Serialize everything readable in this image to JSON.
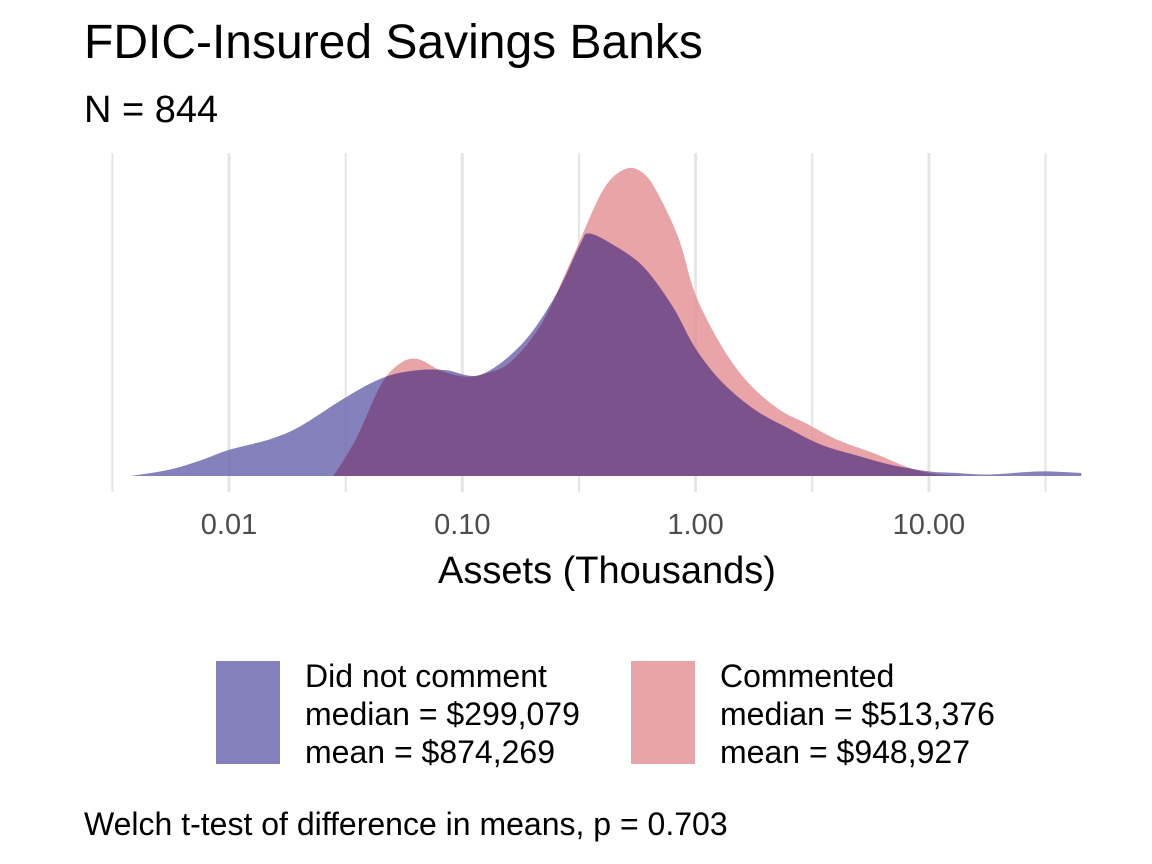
{
  "chart_data": {
    "type": "area",
    "title": "FDIC-Insured Savings Banks",
    "subtitle": "N = 844",
    "xlabel": "Assets (Thousands)",
    "ylabel": "",
    "x_scale": "log10",
    "xlim": [
      0.0038,
      45
    ],
    "x_ticks": [
      0.01,
      0.1,
      1,
      10
    ],
    "x_tick_labels": [
      "0.01",
      "0.10",
      "1.00",
      "10.00"
    ],
    "grid": "vertical",
    "legend_position": "bottom",
    "series": [
      {
        "name": "Did not comment",
        "color": "#6A65AD",
        "legend_lines": [
          "Did not comment",
          "median = $299,079",
          "mean = $874,269"
        ],
        "x": [
          0.0038,
          0.0055,
          0.0075,
          0.01,
          0.015,
          0.02,
          0.03,
          0.04,
          0.05,
          0.065,
          0.085,
          0.12,
          0.18,
          0.25,
          0.32,
          0.35,
          0.45,
          0.6,
          0.8,
          1.0,
          1.3,
          1.8,
          2.5,
          3.5,
          5.0,
          7.0,
          10.0,
          13.0,
          18.0,
          30.0,
          45.0
        ],
        "y": [
          0.0,
          0.02,
          0.05,
          0.085,
          0.12,
          0.16,
          0.245,
          0.3,
          0.33,
          0.345,
          0.345,
          0.33,
          0.43,
          0.585,
          0.755,
          0.79,
          0.75,
          0.68,
          0.55,
          0.415,
          0.305,
          0.215,
          0.155,
          0.1,
          0.065,
          0.035,
          0.015,
          0.01,
          0.005,
          0.015,
          0.01
        ]
      },
      {
        "name": "Commented",
        "color": "#E38D91",
        "legend_lines": [
          "Commented",
          "median = $513,376",
          "mean = $948,927"
        ],
        "x": [
          0.028,
          0.035,
          0.045,
          0.055,
          0.065,
          0.08,
          0.1,
          0.12,
          0.16,
          0.22,
          0.3,
          0.4,
          0.5,
          0.6,
          0.7,
          0.85,
          1.0,
          1.3,
          1.7,
          2.3,
          3.0,
          4.0,
          6.0,
          8.0,
          10.0,
          12.0,
          15.0
        ],
        "y": [
          0.0,
          0.12,
          0.3,
          0.37,
          0.38,
          0.345,
          0.325,
          0.33,
          0.37,
          0.5,
          0.72,
          0.93,
          1.0,
          0.985,
          0.91,
          0.77,
          0.59,
          0.42,
          0.3,
          0.215,
          0.17,
          0.12,
          0.07,
          0.03,
          0.01,
          0.003,
          0.0
        ]
      }
    ],
    "overlap_color": "#7C528C",
    "footnote": "Welch t-test of difference in means, p = 0.703"
  }
}
